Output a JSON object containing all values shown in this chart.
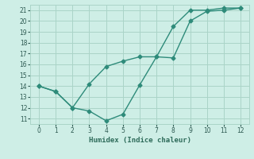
{
  "xlabel": "Humidex (Indice chaleur)",
  "x": [
    0,
    1,
    2,
    3,
    4,
    5,
    6,
    7,
    8,
    9,
    10,
    11,
    12
  ],
  "line1_y": [
    14.0,
    13.5,
    12.0,
    11.7,
    10.8,
    11.4,
    14.1,
    16.7,
    16.6,
    20.0,
    20.9,
    21.0,
    21.2
  ],
  "line2_y": [
    14.0,
    13.5,
    12.0,
    14.2,
    15.8,
    16.3,
    16.7,
    16.7,
    19.5,
    21.0,
    21.0,
    21.2,
    21.2
  ],
  "line_color": "#2e8b7a",
  "bg_color": "#ceeee6",
  "grid_color": "#aad4c8",
  "ylim": [
    10.5,
    21.5
  ],
  "xlim": [
    -0.5,
    12.5
  ],
  "yticks": [
    11,
    12,
    13,
    14,
    15,
    16,
    17,
    18,
    19,
    20,
    21
  ],
  "xticks": [
    0,
    1,
    2,
    3,
    4,
    5,
    6,
    7,
    8,
    9,
    10,
    11,
    12
  ],
  "marker": "D",
  "marker_size": 2.5,
  "line_width": 1.0
}
